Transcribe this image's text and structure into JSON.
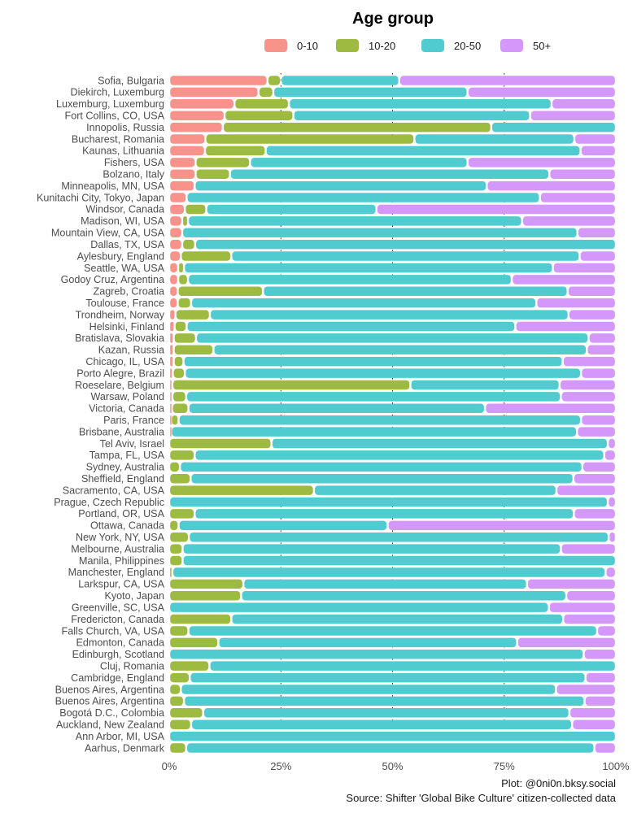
{
  "chart_data": {
    "type": "bar",
    "orientation": "horizontal",
    "stacked": "percent",
    "legend": {
      "title": "Age group",
      "position": "top"
    },
    "xlim": [
      0,
      100
    ],
    "x_ticks": [
      "0%",
      "25%",
      "50%",
      "75%",
      "100%"
    ],
    "grid": "vertical dotted at 25/50/75",
    "caption": [
      "Plot: @0ni0n.bksy.social",
      "Source: Shifter 'Global Bike Culture' citizen-collected data"
    ],
    "series": [
      {
        "name": "0-10",
        "color": "#f8938c"
      },
      {
        "name": "10-20",
        "color": "#9dbb40"
      },
      {
        "name": "20-50",
        "color": "#50cbd0"
      },
      {
        "name": "50+",
        "color": "#d398f9"
      }
    ],
    "categories": [
      "Sofia, Bulgaria",
      "Diekirch, Luxemburg",
      "Luxemburg, Luxemburg",
      "Fort Collins, CO, USA",
      "Innopolis, Russia",
      "Bucharest, Romania",
      "Kaunas, Lithuania",
      "Fishers, USA",
      "Bolzano, Italy",
      "Minneapolis, MN, USA",
      "Kunitachi City, Tokyo, Japan",
      "Windsor, Canada",
      "Madison, WI, USA",
      "Mountain View, CA, USA",
      "Dallas, TX, USA",
      "Aylesbury, England",
      "Seattle, WA, USA",
      "Godoy Cruz, Argentina",
      "Zagreb, Croatia",
      "Toulouse, France",
      "Trondheim, Norway",
      "Helsinki, Finland",
      "Bratislava, Slovakia",
      "Kazan, Russia",
      "Chicago, IL, USA",
      "Porto Alegre, Brazil",
      "Roeselare, Belgium",
      "Warsaw, Poland",
      "Victoria, Canada",
      "Paris, France",
      "Brisbane, Australia",
      "Tel Aviv, Israel",
      "Tampa, FL, USA",
      "Sydney, Australia",
      "Sheffield, England",
      "Sacramento, CA, USA",
      "Prague, Czech Republic",
      "Portland, OR, USA",
      "Ottawa, Canada",
      "New York, NY, USA",
      "Melbourne, Australia",
      "Manila, Philippines",
      "Manchester, England",
      "Larkspur, CA, USA",
      "Kyoto, Japan",
      "Greenville, SC, USA",
      "Fredericton, Canada",
      "Falls Church, VA, USA",
      "Edmonton, Canada",
      "Edinburgh, Scotland",
      "Cluj, Romania",
      "Cambridge, England",
      "Buenos Aires, Argentina",
      "Buenos Aires, Argentina",
      "Bogotá D.C., Colombia",
      "Auckland, New Zealand",
      "Ann Arbor, MI, USA",
      "Aarhus, Denmark"
    ],
    "values": [
      [
        22,
        3,
        26.5,
        48.5
      ],
      [
        20,
        3.3,
        43.5,
        33.2
      ],
      [
        14.6,
        12.2,
        58.8,
        14.4
      ],
      [
        12.4,
        15.4,
        53,
        19.2
      ],
      [
        12,
        60.1,
        27.9,
        0
      ],
      [
        8.1,
        46.8,
        35.8,
        9.3
      ],
      [
        8,
        13.6,
        70.5,
        7.9
      ],
      [
        5.9,
        12.2,
        48.7,
        33.2
      ],
      [
        5.9,
        7.7,
        71.5,
        14.9
      ],
      [
        5.7,
        0,
        65.4,
        28.9
      ],
      [
        3.9,
        0,
        79.1,
        17
      ],
      [
        3.5,
        4.8,
        38.1,
        53.6
      ],
      [
        2.9,
        1.3,
        74.8,
        21
      ],
      [
        2.9,
        0,
        88.5,
        8.6
      ],
      [
        2.9,
        2.9,
        94.2,
        0
      ],
      [
        2.6,
        11.3,
        78,
        8.1
      ],
      [
        2,
        1.3,
        82.6,
        14.1
      ],
      [
        2,
        2.2,
        72.5,
        23.3
      ],
      [
        1.9,
        19.1,
        68.2,
        10.8
      ],
      [
        1.9,
        3,
        77.3,
        17.8
      ],
      [
        1.4,
        7.7,
        80.3,
        10.6
      ],
      [
        1.2,
        2.7,
        73.6,
        22.5
      ],
      [
        1,
        5,
        87.9,
        6.1
      ],
      [
        1,
        8.9,
        83.6,
        6.5
      ],
      [
        1,
        2.2,
        84.9,
        11.9
      ],
      [
        0.8,
        2.7,
        88.7,
        7.8
      ],
      [
        0.7,
        53.3,
        33.4,
        12.6
      ],
      [
        0.7,
        3.1,
        83.9,
        12.3
      ],
      [
        0.6,
        3.7,
        66.4,
        29.3
      ],
      [
        0.4,
        1.7,
        90.1,
        7.8
      ],
      [
        0.4,
        0,
        90.9,
        8.7
      ],
      [
        0,
        22.9,
        75.3,
        1.8
      ],
      [
        0,
        5.7,
        91.7,
        2.6
      ],
      [
        0,
        2.4,
        90.1,
        7.5
      ],
      [
        0,
        4.8,
        85.7,
        9.5
      ],
      [
        0,
        32.4,
        54.3,
        13.3
      ],
      [
        0,
        0,
        98.2,
        1.8
      ],
      [
        0,
        5.7,
        84.9,
        9.4
      ],
      [
        0,
        2.1,
        46.8,
        51.1
      ],
      [
        0,
        4.4,
        94,
        1.6
      ],
      [
        0,
        3,
        84.7,
        12.3
      ],
      [
        0,
        3,
        97,
        0
      ],
      [
        0,
        0.7,
        97,
        2.3
      ],
      [
        0,
        16.6,
        63.5,
        19.9
      ],
      [
        0,
        16.1,
        72.8,
        11.1
      ],
      [
        0,
        0,
        85,
        15
      ],
      [
        0,
        13.9,
        74.3,
        11.8
      ],
      [
        0,
        4.3,
        91.5,
        4.2
      ],
      [
        0,
        11,
        66.9,
        22.1
      ],
      [
        0,
        0,
        92.8,
        7.2
      ],
      [
        0,
        9,
        91,
        0
      ],
      [
        0,
        4.6,
        88.6,
        6.8
      ],
      [
        0,
        2.6,
        84,
        13.4
      ],
      [
        0,
        3.3,
        89.7,
        7
      ],
      [
        0,
        7.6,
        82,
        10.4
      ],
      [
        0,
        4.9,
        85.3,
        9.8
      ],
      [
        0,
        0,
        100,
        0
      ],
      [
        0,
        3.8,
        91.4,
        4.8
      ]
    ]
  }
}
